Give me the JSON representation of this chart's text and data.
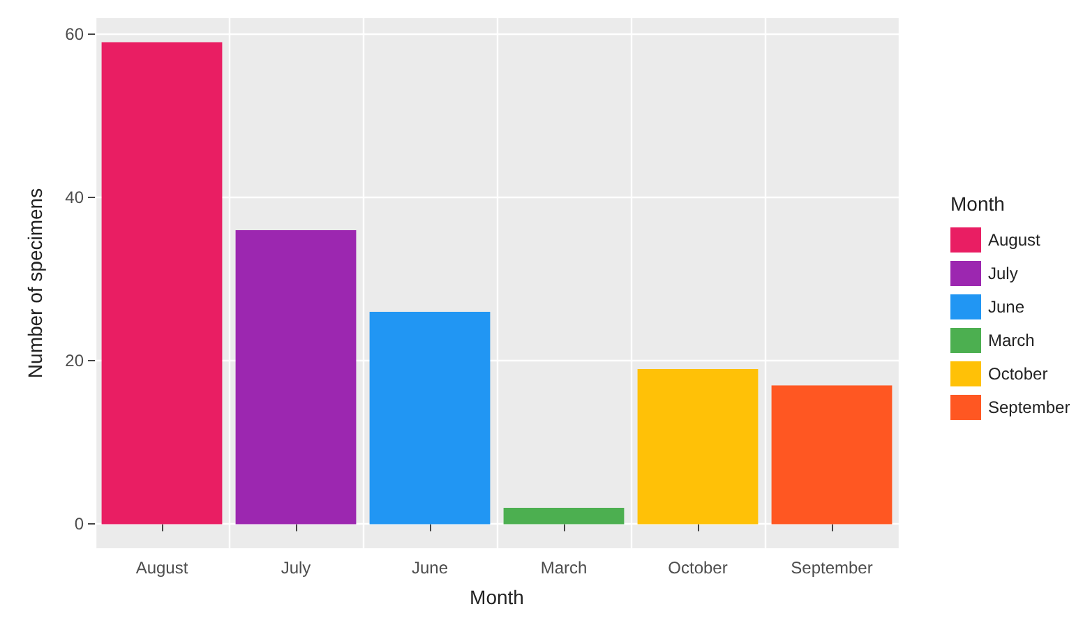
{
  "chart_data": {
    "type": "bar",
    "xlabel": "Month",
    "ylabel": "Number of specimens",
    "legend_title": "Month",
    "categories": [
      "August",
      "July",
      "June",
      "March",
      "October",
      "September"
    ],
    "series": [
      {
        "name": "August",
        "color": "#e91e63",
        "values": [
          59,
          null,
          null,
          null,
          null,
          null
        ]
      },
      {
        "name": "July",
        "color": "#9c27b0",
        "values": [
          null,
          36,
          null,
          null,
          null,
          null
        ]
      },
      {
        "name": "June",
        "color": "#2196f3",
        "values": [
          null,
          null,
          26,
          null,
          null,
          null
        ]
      },
      {
        "name": "March",
        "color": "#4caf50",
        "values": [
          null,
          null,
          null,
          2,
          null,
          null
        ]
      },
      {
        "name": "October",
        "color": "#ffc107",
        "values": [
          null,
          null,
          null,
          null,
          19,
          null
        ]
      },
      {
        "name": "September",
        "color": "#ff5722",
        "values": [
          null,
          null,
          null,
          null,
          null,
          17
        ]
      }
    ],
    "ylim": [
      -2.95,
      61.95
    ],
    "yticks": [
      0,
      20,
      40,
      60
    ],
    "grid": true,
    "legend": "right"
  }
}
